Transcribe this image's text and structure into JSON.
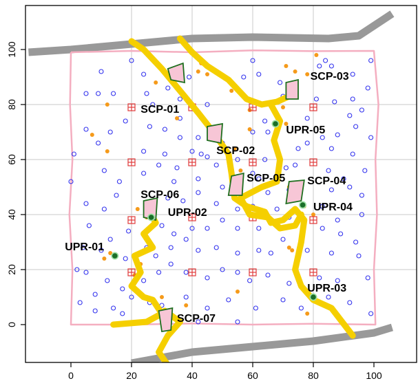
{
  "chart_data": {
    "type": "scatter",
    "title": "",
    "xlabel": "",
    "ylabel": "",
    "xlim": [
      -15,
      115
    ],
    "ylim": [
      -15,
      112
    ],
    "x_ticks": [
      0,
      20,
      40,
      60,
      80,
      100
    ],
    "x_tick_labels": [
      "0",
      "20",
      "40",
      "60",
      "80",
      "100"
    ],
    "y_ticks": [
      0,
      20,
      40,
      60,
      80,
      100
    ],
    "y_tick_labels": [
      "0",
      "20",
      "40",
      "60",
      "80",
      "100"
    ],
    "grid_x": [
      20,
      40,
      60,
      80
    ],
    "grid_y": [
      20,
      40,
      60,
      80
    ],
    "grid": true,
    "colors": {
      "plot_area": "#ffffff",
      "frame": "#000000",
      "grid": "#c8c8c8",
      "boundary": "#f4aec0",
      "road": "#999999",
      "stream": "#f5cf00",
      "plot_point": "#3232ee",
      "orange_point": "#f59a1a",
      "grid_marker": "#e03a3a",
      "scp_fill": "#f7c6d6",
      "scp_stroke": "#1e6e1e",
      "upr_fill": "#1a6e28"
    },
    "boundary": [
      [
        0,
        99
      ],
      [
        20,
        99.5
      ],
      [
        40,
        99
      ],
      [
        60,
        99.7
      ],
      [
        80,
        99.4
      ],
      [
        100,
        99.5
      ],
      [
        101.5,
        80
      ],
      [
        100.5,
        60
      ],
      [
        101,
        40
      ],
      [
        100,
        20
      ],
      [
        100.5,
        0
      ],
      [
        80,
        0.3
      ],
      [
        60,
        0
      ],
      [
        40,
        0.4
      ],
      [
        20,
        0
      ],
      [
        0,
        0
      ],
      [
        0.5,
        20
      ],
      [
        -0.5,
        40
      ],
      [
        0.5,
        60
      ],
      [
        -0.3,
        80
      ],
      [
        0,
        99
      ]
    ],
    "roads": [
      {
        "points": [
          [
            -14,
            99
          ],
          [
            0,
            100
          ],
          [
            20,
            102
          ],
          [
            40,
            104
          ],
          [
            60,
            104.5
          ],
          [
            85,
            104
          ],
          [
            95,
            105
          ],
          [
            106,
            113
          ]
        ]
      },
      {
        "points": [
          [
            20,
            -14
          ],
          [
            40,
            -10
          ],
          [
            60,
            -8
          ],
          [
            80,
            -6
          ],
          [
            100,
            -3
          ],
          [
            106,
            -1
          ]
        ]
      }
    ],
    "streams": [
      {
        "points": [
          [
            20,
            103
          ],
          [
            24,
            100
          ],
          [
            30,
            93
          ],
          [
            36,
            85
          ],
          [
            42,
            77
          ],
          [
            47,
            70
          ],
          [
            52,
            62
          ],
          [
            53,
            55
          ],
          [
            54,
            46
          ],
          [
            58,
            43
          ],
          [
            64,
            41
          ],
          [
            66,
            37
          ],
          [
            70,
            38
          ],
          [
            74,
            42
          ],
          [
            77,
            38
          ],
          [
            76,
            30
          ],
          [
            74,
            20
          ],
          [
            76,
            14
          ],
          [
            80,
            9
          ],
          [
            86,
            6
          ],
          [
            93,
            -4
          ]
        ]
      },
      {
        "points": [
          [
            36,
            104
          ],
          [
            40,
            99
          ],
          [
            45,
            94
          ],
          [
            52,
            89
          ],
          [
            58,
            82
          ],
          [
            63,
            80
          ],
          [
            68,
            81
          ],
          [
            72,
            83
          ]
        ]
      },
      {
        "points": [
          [
            66,
            80
          ],
          [
            69,
            74
          ],
          [
            67,
            67
          ],
          [
            69,
            60
          ],
          [
            68,
            52
          ],
          [
            63,
            50
          ],
          [
            56,
            46
          ],
          [
            59,
            40
          ],
          [
            65,
            39
          ],
          [
            69,
            35
          ],
          [
            74,
            36
          ],
          [
            76,
            40
          ]
        ]
      },
      {
        "points": [
          [
            26,
            41
          ],
          [
            28,
            37
          ],
          [
            24,
            33
          ],
          [
            27,
            28
          ],
          [
            21,
            25
          ],
          [
            23,
            19
          ],
          [
            20,
            14
          ],
          [
            24,
            10
          ],
          [
            27,
            9
          ],
          [
            30,
            4
          ],
          [
            25,
            1
          ],
          [
            14,
            0
          ]
        ]
      },
      {
        "points": [
          [
            31,
            5
          ],
          [
            36,
            1
          ],
          [
            32,
            -4
          ],
          [
            29,
            -10
          ],
          [
            34,
            -18
          ]
        ]
      },
      {
        "points": [
          [
            36,
            -15
          ],
          [
            46,
            -20
          ]
        ]
      }
    ],
    "scp_plots": [
      {
        "id": "SCP-01",
        "label_x": 23,
        "label_y": 77,
        "poly": [
          [
            32,
            93
          ],
          [
            37,
            95
          ],
          [
            37.5,
            88
          ],
          [
            33,
            89
          ]
        ]
      },
      {
        "id": "SCP-02",
        "label_x": 48,
        "label_y": 62,
        "poly": [
          [
            45,
            72
          ],
          [
            50,
            73
          ],
          [
            49.5,
            66
          ],
          [
            45,
            67
          ]
        ]
      },
      {
        "id": "SCP-03",
        "label_x": 79,
        "label_y": 89,
        "poly": [
          [
            71,
            88
          ],
          [
            75,
            89
          ],
          [
            75,
            82
          ],
          [
            71,
            82
          ]
        ]
      },
      {
        "id": "SCP-04",
        "label_x": 78,
        "label_y": 51,
        "poly": [
          [
            72,
            52
          ],
          [
            77,
            52.5
          ],
          [
            76,
            45
          ],
          [
            71,
            44
          ]
        ]
      },
      {
        "id": "SCP-05",
        "label_x": 58,
        "label_y": 52,
        "poly": [
          [
            53,
            54
          ],
          [
            57,
            55
          ],
          [
            56.5,
            47
          ],
          [
            52,
            47
          ]
        ]
      },
      {
        "id": "SCP-06",
        "label_x": 23,
        "label_y": 46,
        "poly": [
          [
            24,
            45
          ],
          [
            28.5,
            46
          ],
          [
            28,
            38
          ],
          [
            24,
            39
          ]
        ]
      },
      {
        "id": "SCP-07",
        "label_x": 35,
        "label_y": 1,
        "poly": [
          [
            29,
            5
          ],
          [
            33.5,
            6
          ],
          [
            33,
            -2
          ],
          [
            30,
            -2.5
          ]
        ]
      }
    ],
    "upr_points": [
      {
        "id": "UPR-01",
        "x": 14.5,
        "y": 25,
        "label_x": -2,
        "label_y": 27
      },
      {
        "id": "UPR-02",
        "x": 26.5,
        "y": 39,
        "label_x": 32,
        "label_y": 39.5
      },
      {
        "id": "UPR-03",
        "x": 80,
        "y": 10,
        "label_x": 78,
        "label_y": 12
      },
      {
        "id": "UPR-04",
        "x": 76.5,
        "y": 43.5,
        "label_x": 80,
        "label_y": 41.5
      },
      {
        "id": "UPR-05",
        "x": 67.5,
        "y": 73,
        "label_x": 71,
        "label_y": 69.5
      }
    ],
    "grid_markers": [
      [
        20,
        79
      ],
      [
        40,
        79
      ],
      [
        60,
        79
      ],
      [
        80,
        79
      ],
      [
        20,
        59
      ],
      [
        40,
        59
      ],
      [
        60,
        59
      ],
      [
        80,
        59
      ],
      [
        20,
        38
      ],
      [
        40,
        39
      ],
      [
        60,
        39
      ],
      [
        80,
        38
      ],
      [
        20,
        19
      ],
      [
        40,
        19
      ],
      [
        60,
        19
      ],
      [
        80,
        19
      ]
    ],
    "orange_points": [
      [
        42,
        92
      ],
      [
        43,
        95
      ],
      [
        45,
        91
      ],
      [
        53,
        85
      ],
      [
        71,
        94
      ],
      [
        74,
        92
      ],
      [
        81,
        98
      ],
      [
        78,
        91
      ],
      [
        59,
        78
      ],
      [
        70,
        79
      ],
      [
        71,
        73
      ],
      [
        59,
        71
      ],
      [
        54,
        64
      ],
      [
        35,
        75
      ],
      [
        28,
        88
      ],
      [
        12,
        80
      ],
      [
        7,
        69
      ],
      [
        12,
        63
      ],
      [
        56,
        56
      ],
      [
        63,
        50
      ],
      [
        72,
        50
      ],
      [
        77,
        43
      ],
      [
        80,
        40
      ],
      [
        22,
        42
      ],
      [
        25,
        39
      ],
      [
        11,
        24
      ],
      [
        13,
        26
      ],
      [
        21,
        18
      ],
      [
        23,
        22
      ],
      [
        30,
        10
      ],
      [
        32,
        5
      ],
      [
        38,
        7
      ],
      [
        55,
        12
      ],
      [
        78,
        4
      ],
      [
        72,
        28
      ],
      [
        73,
        27
      ]
    ],
    "plot_points": [
      [
        10,
        92
      ],
      [
        20,
        96
      ],
      [
        24,
        91
      ],
      [
        5,
        84
      ],
      [
        9,
        84
      ],
      [
        14,
        84
      ],
      [
        25,
        84
      ],
      [
        36,
        82
      ],
      [
        32,
        86
      ],
      [
        27,
        80
      ],
      [
        39,
        90
      ],
      [
        57,
        90
      ],
      [
        62,
        91
      ],
      [
        60,
        96
      ],
      [
        69,
        88
      ],
      [
        82,
        94
      ],
      [
        84,
        96
      ],
      [
        86,
        94
      ],
      [
        93,
        91
      ],
      [
        99,
        96
      ],
      [
        98,
        86
      ],
      [
        64,
        74
      ],
      [
        70,
        83
      ],
      [
        81,
        82
      ],
      [
        87,
        81
      ],
      [
        93,
        82
      ],
      [
        96,
        78
      ],
      [
        92,
        76
      ],
      [
        78,
        75
      ],
      [
        83,
        68
      ],
      [
        88,
        69
      ],
      [
        94,
        72
      ],
      [
        99,
        68
      ],
      [
        5,
        71
      ],
      [
        13,
        70
      ],
      [
        18,
        74
      ],
      [
        26,
        72
      ],
      [
        31,
        71
      ],
      [
        36,
        68
      ],
      [
        42,
        68
      ],
      [
        50,
        66
      ],
      [
        60,
        70
      ],
      [
        65,
        70
      ],
      [
        75,
        64
      ],
      [
        78,
        66
      ],
      [
        86,
        64
      ],
      [
        93,
        62
      ],
      [
        1,
        62
      ],
      [
        9,
        66
      ],
      [
        24,
        63
      ],
      [
        31,
        62
      ],
      [
        35,
        57
      ],
      [
        40,
        63
      ],
      [
        45,
        61
      ],
      [
        55,
        60
      ],
      [
        60,
        55
      ],
      [
        64,
        60
      ],
      [
        71,
        57
      ],
      [
        74,
        58
      ],
      [
        85,
        56
      ],
      [
        90,
        53
      ],
      [
        97,
        56
      ],
      [
        0,
        52
      ],
      [
        11,
        56
      ],
      [
        16,
        52
      ],
      [
        24,
        55
      ],
      [
        29,
        58
      ],
      [
        34,
        52
      ],
      [
        42,
        53
      ],
      [
        50,
        50
      ],
      [
        54,
        49
      ],
      [
        62,
        53
      ],
      [
        65,
        48
      ],
      [
        72,
        49
      ],
      [
        86,
        49
      ],
      [
        92,
        50
      ],
      [
        96,
        47
      ],
      [
        5,
        44
      ],
      [
        11,
        42
      ],
      [
        15,
        47
      ],
      [
        27,
        44
      ],
      [
        32,
        46
      ],
      [
        37,
        45
      ],
      [
        42,
        48
      ],
      [
        48,
        44
      ],
      [
        55,
        42
      ],
      [
        60,
        43
      ],
      [
        68,
        42
      ],
      [
        72,
        39
      ],
      [
        83,
        43
      ],
      [
        88,
        38
      ],
      [
        96,
        40
      ],
      [
        6,
        36
      ],
      [
        13,
        31
      ],
      [
        19,
        34
      ],
      [
        30,
        36
      ],
      [
        34,
        33
      ],
      [
        40,
        35
      ],
      [
        45,
        35
      ],
      [
        50,
        38
      ],
      [
        55,
        35
      ],
      [
        62,
        35
      ],
      [
        70,
        31
      ],
      [
        83,
        35
      ],
      [
        89,
        33
      ],
      [
        94,
        30
      ],
      [
        4,
        28
      ],
      [
        10,
        27
      ],
      [
        18,
        24
      ],
      [
        28,
        25
      ],
      [
        33,
        28
      ],
      [
        38,
        31
      ],
      [
        42,
        27
      ],
      [
        48,
        28
      ],
      [
        55,
        26
      ],
      [
        62,
        27
      ],
      [
        66,
        26
      ],
      [
        78,
        27
      ],
      [
        86,
        26
      ],
      [
        95,
        25
      ],
      [
        2,
        20
      ],
      [
        5,
        19
      ],
      [
        12,
        16
      ],
      [
        17,
        13
      ],
      [
        24,
        16
      ],
      [
        29,
        19
      ],
      [
        33,
        22
      ],
      [
        38,
        19
      ],
      [
        45,
        17
      ],
      [
        50,
        20
      ],
      [
        55,
        19
      ],
      [
        59,
        16
      ],
      [
        65,
        18
      ],
      [
        72,
        15
      ],
      [
        82,
        17
      ],
      [
        88,
        16
      ],
      [
        98,
        17
      ],
      [
        3,
        8
      ],
      [
        8,
        5
      ],
      [
        14,
        6
      ],
      [
        20,
        10
      ],
      [
        26,
        8
      ],
      [
        30,
        7
      ],
      [
        38,
        10
      ],
      [
        45,
        6
      ],
      [
        52,
        9
      ],
      [
        61,
        6
      ],
      [
        70,
        9
      ],
      [
        76,
        6
      ],
      [
        85,
        10
      ],
      [
        92,
        8
      ],
      [
        99,
        4
      ],
      [
        55,
        1
      ],
      [
        42,
        1
      ],
      [
        17,
        4
      ],
      [
        8,
        11
      ],
      [
        43,
        62
      ],
      [
        48,
        58
      ],
      [
        36,
        75
      ],
      [
        45,
        80
      ],
      [
        25,
        28
      ]
    ]
  }
}
